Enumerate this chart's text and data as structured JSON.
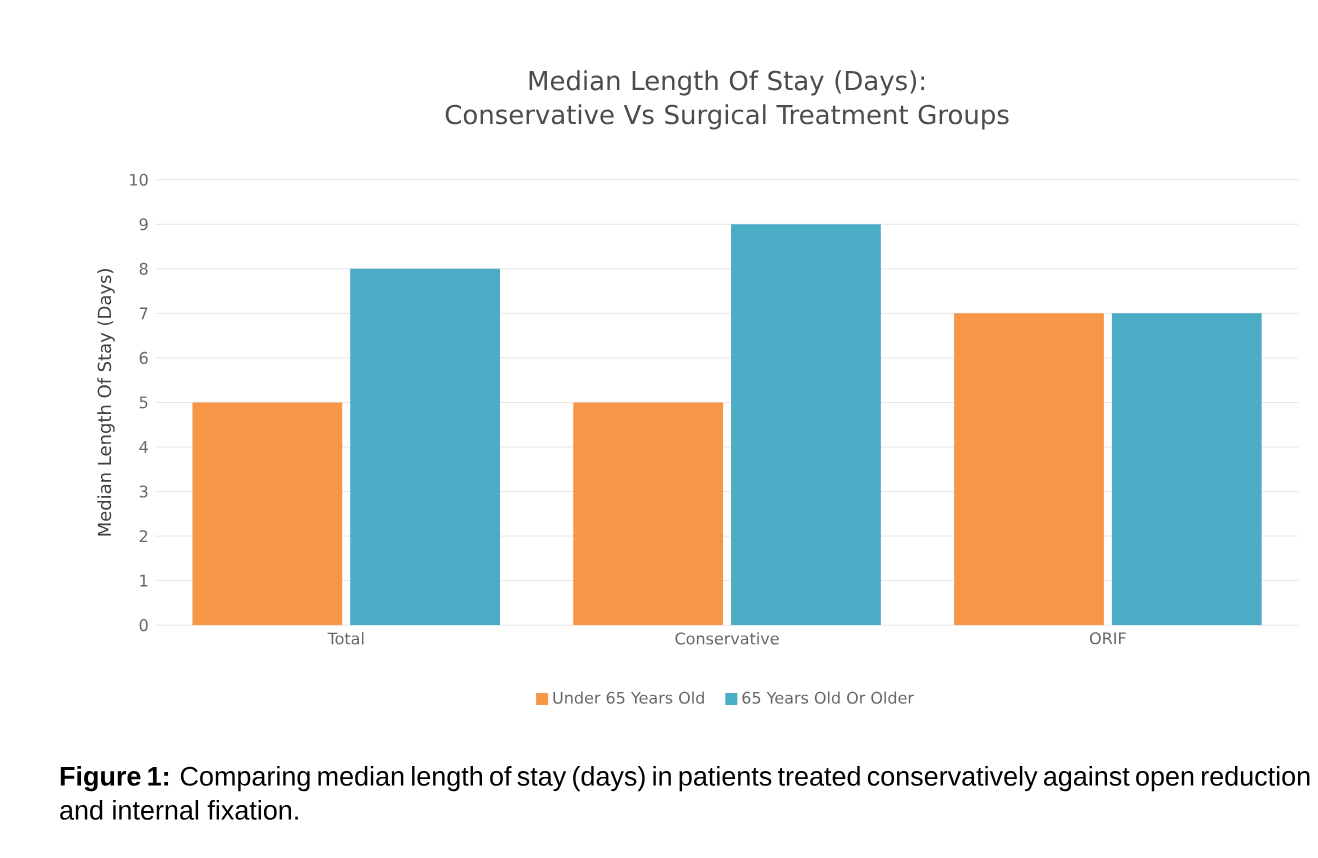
{
  "chart_data": {
    "type": "bar",
    "title": "Median Length Of Stay (Days): Conservative Vs Surgical Treatment Groups",
    "ylabel": "Median Length Of Stay (Days)",
    "categories": [
      "Total",
      "Conservative",
      "ORIF"
    ],
    "series": [
      {
        "name": "Under 65 Years Old",
        "color": "#f79646",
        "values": [
          5,
          5,
          7
        ]
      },
      {
        "name": "65 Years Old Or Older",
        "color": "#4bacc6",
        "values": [
          8,
          9,
          7
        ]
      }
    ],
    "ylim": [
      0,
      10
    ],
    "yticks": [
      0,
      1,
      2,
      3,
      4,
      5,
      6,
      7,
      8,
      9,
      10
    ],
    "grid": "y",
    "legend": "bottom",
    "annotations": [
      "**Figure 1:** Comparing median length of stay (days) in patients treated conservatively against open reduction and internal fixation."
    ]
  }
}
